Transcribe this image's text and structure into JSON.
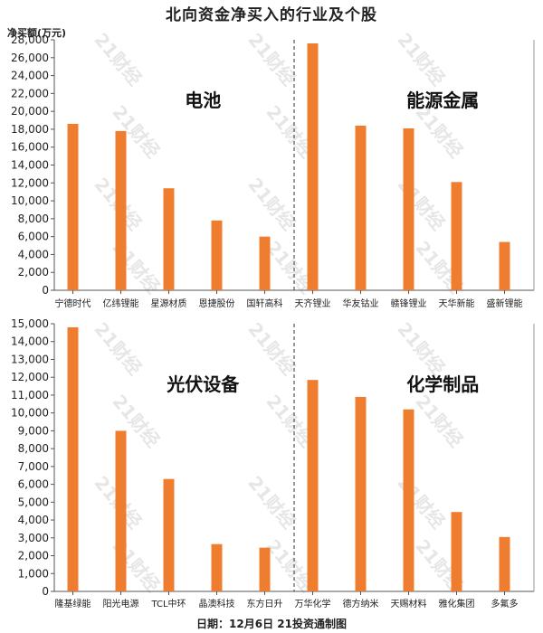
{
  "title": "北向资金净买入的行业及个股",
  "unit_label": "净买额(万元)",
  "footer": "日期：12月6日 21投资通制图",
  "watermark": "21财经",
  "colors": {
    "bar": "#ef7d2f",
    "axis": "#555555",
    "divider": "#333333"
  },
  "chart_data": [
    {
      "type": "bar",
      "ylabel": "净买额(万元)",
      "ylim": [
        0,
        28000
      ],
      "yticks": [
        0,
        2000,
        4000,
        6000,
        8000,
        10000,
        12000,
        14000,
        16000,
        18000,
        20000,
        22000,
        24000,
        26000,
        28000
      ],
      "groups": [
        {
          "title": "电池",
          "categories": [
            "宁德时代",
            "亿纬锂能",
            "星源材质",
            "恩捷股份",
            "国轩高科"
          ],
          "values": [
            18600,
            17800,
            11400,
            7800,
            6000
          ]
        },
        {
          "title": "能源金属",
          "categories": [
            "天齐锂业",
            "华友钴业",
            "赣锋锂业",
            "天华新能",
            "盛新锂能"
          ],
          "values": [
            27600,
            18400,
            18100,
            12100,
            5400
          ]
        }
      ]
    },
    {
      "type": "bar",
      "ylabel": "净买额(万元)",
      "ylim": [
        0,
        15000
      ],
      "yticks": [
        0,
        1000,
        2000,
        3000,
        4000,
        5000,
        6000,
        7000,
        8000,
        9000,
        10000,
        11000,
        12000,
        13000,
        14000,
        15000
      ],
      "groups": [
        {
          "title": "光伏设备",
          "categories": [
            "隆基绿能",
            "阳光电源",
            "TCL中环",
            "晶澳科技",
            "东方日升"
          ],
          "values": [
            14800,
            9000,
            6300,
            2650,
            2450
          ]
        },
        {
          "title": "化学制品",
          "categories": [
            "万华化学",
            "德方纳米",
            "天赐材料",
            "雅化集团",
            "多氟多"
          ],
          "values": [
            11850,
            10900,
            10200,
            4450,
            3050
          ]
        }
      ]
    }
  ]
}
